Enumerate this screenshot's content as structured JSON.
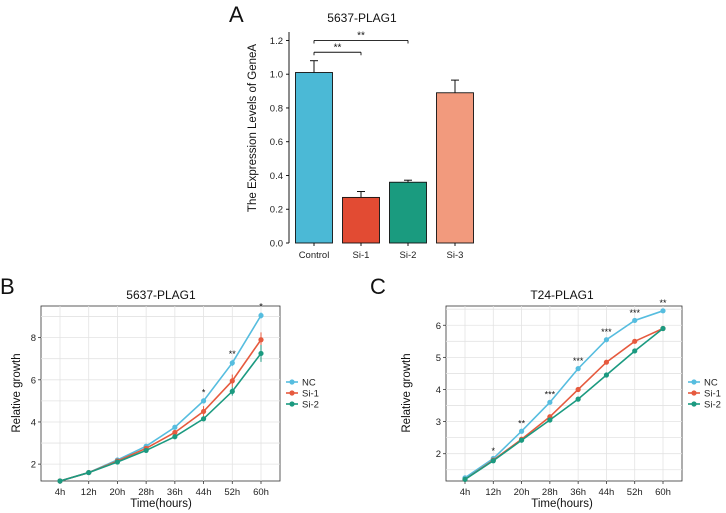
{
  "chart_data": [
    {
      "panel": "A",
      "type": "bar",
      "title": "5637-PLAG1",
      "xlabel": "",
      "ylabel": "The Expression Levels of GeneA",
      "ylim": [
        0,
        1.25
      ],
      "yticks": [
        0.0,
        0.2,
        0.4,
        0.6,
        0.8,
        1.0,
        1.2
      ],
      "ytick_labels": [
        "0.0",
        "0.2",
        "0.4",
        "0.6",
        "0.8",
        "1.0",
        "1.2"
      ],
      "categories": [
        "Control",
        "Si-1",
        "Si-2",
        "Si-3"
      ],
      "values": [
        1.01,
        0.27,
        0.36,
        0.89
      ],
      "errors": [
        0.07,
        0.035,
        0.012,
        0.075
      ],
      "colors": [
        "#4BB9D6",
        "#E24B33",
        "#1A9B7F",
        "#F29A7D"
      ],
      "significance": [
        {
          "from": "Control",
          "to": "Si-1",
          "label": "**",
          "y": 1.13
        },
        {
          "from": "Control",
          "to": "Si-2",
          "label": "**",
          "y": 1.2
        }
      ]
    },
    {
      "panel": "B",
      "type": "line",
      "title": "5637-PLAG1",
      "xlabel": "Time(hours)",
      "ylabel": "Relative growth",
      "categories": [
        "4h",
        "12h",
        "20h",
        "28h",
        "36h",
        "44h",
        "52h",
        "60h"
      ],
      "ylim": [
        1.2,
        9.5
      ],
      "yticks": [
        2,
        4,
        6,
        8
      ],
      "ytick_labels": [
        "2",
        "4",
        "6",
        "8"
      ],
      "series": [
        {
          "name": "NC",
          "color": "#56BDDF",
          "values": [
            1.2,
            1.6,
            2.2,
            2.85,
            3.75,
            5.0,
            6.8,
            9.05
          ],
          "errors": [
            0.03,
            0.05,
            0.06,
            0.08,
            0.1,
            0.12,
            0.15,
            0.15
          ]
        },
        {
          "name": "Si-1",
          "color": "#E65A3E",
          "values": [
            1.2,
            1.6,
            2.15,
            2.75,
            3.5,
            4.5,
            5.95,
            7.9
          ],
          "errors": [
            0.03,
            0.05,
            0.06,
            0.08,
            0.1,
            0.25,
            0.3,
            0.35
          ]
        },
        {
          "name": "Si-2",
          "color": "#1B9A80",
          "values": [
            1.2,
            1.6,
            2.1,
            2.65,
            3.3,
            4.15,
            5.45,
            7.25
          ],
          "errors": [
            0.03,
            0.05,
            0.06,
            0.08,
            0.1,
            0.12,
            0.2,
            0.4
          ]
        }
      ],
      "annotations": [
        {
          "category": "44h",
          "label": "*"
        },
        {
          "category": "52h",
          "label": "**"
        },
        {
          "category": "60h",
          "label": "*"
        }
      ],
      "legend": "right"
    },
    {
      "panel": "C",
      "type": "line",
      "title": "T24-PLAG1",
      "xlabel": "Time(hours)",
      "ylabel": "Relative growth",
      "categories": [
        "4h",
        "12h",
        "20h",
        "28h",
        "36h",
        "44h",
        "52h",
        "60h"
      ],
      "ylim": [
        1.15,
        6.6
      ],
      "yticks": [
        2,
        3,
        4,
        5,
        6
      ],
      "ytick_labels": [
        "2",
        "3",
        "4",
        "5",
        "6"
      ],
      "series": [
        {
          "name": "NC",
          "color": "#56BDDF",
          "values": [
            1.25,
            1.85,
            2.7,
            3.6,
            4.65,
            5.55,
            6.15,
            6.45
          ],
          "errors": [
            0.03,
            0.04,
            0.05,
            0.05,
            0.05,
            0.05,
            0.05,
            0.05
          ]
        },
        {
          "name": "Si-1",
          "color": "#E65A3E",
          "values": [
            1.2,
            1.8,
            2.45,
            3.15,
            4.0,
            4.85,
            5.5,
            5.9
          ],
          "errors": [
            0.03,
            0.04,
            0.05,
            0.05,
            0.05,
            0.05,
            0.05,
            0.05
          ]
        },
        {
          "name": "Si-2",
          "color": "#1B9A80",
          "values": [
            1.2,
            1.78,
            2.42,
            3.05,
            3.7,
            4.45,
            5.2,
            5.9
          ],
          "errors": [
            0.03,
            0.04,
            0.05,
            0.05,
            0.05,
            0.05,
            0.05,
            0.05
          ]
        }
      ],
      "annotations": [
        {
          "category": "12h",
          "label": "*"
        },
        {
          "category": "20h",
          "label": "**"
        },
        {
          "category": "28h",
          "label": "***"
        },
        {
          "category": "36h",
          "label": "***"
        },
        {
          "category": "44h",
          "label": "***"
        },
        {
          "category": "52h",
          "label": "***"
        },
        {
          "category": "60h",
          "label": "**"
        }
      ],
      "legend": "right"
    }
  ]
}
